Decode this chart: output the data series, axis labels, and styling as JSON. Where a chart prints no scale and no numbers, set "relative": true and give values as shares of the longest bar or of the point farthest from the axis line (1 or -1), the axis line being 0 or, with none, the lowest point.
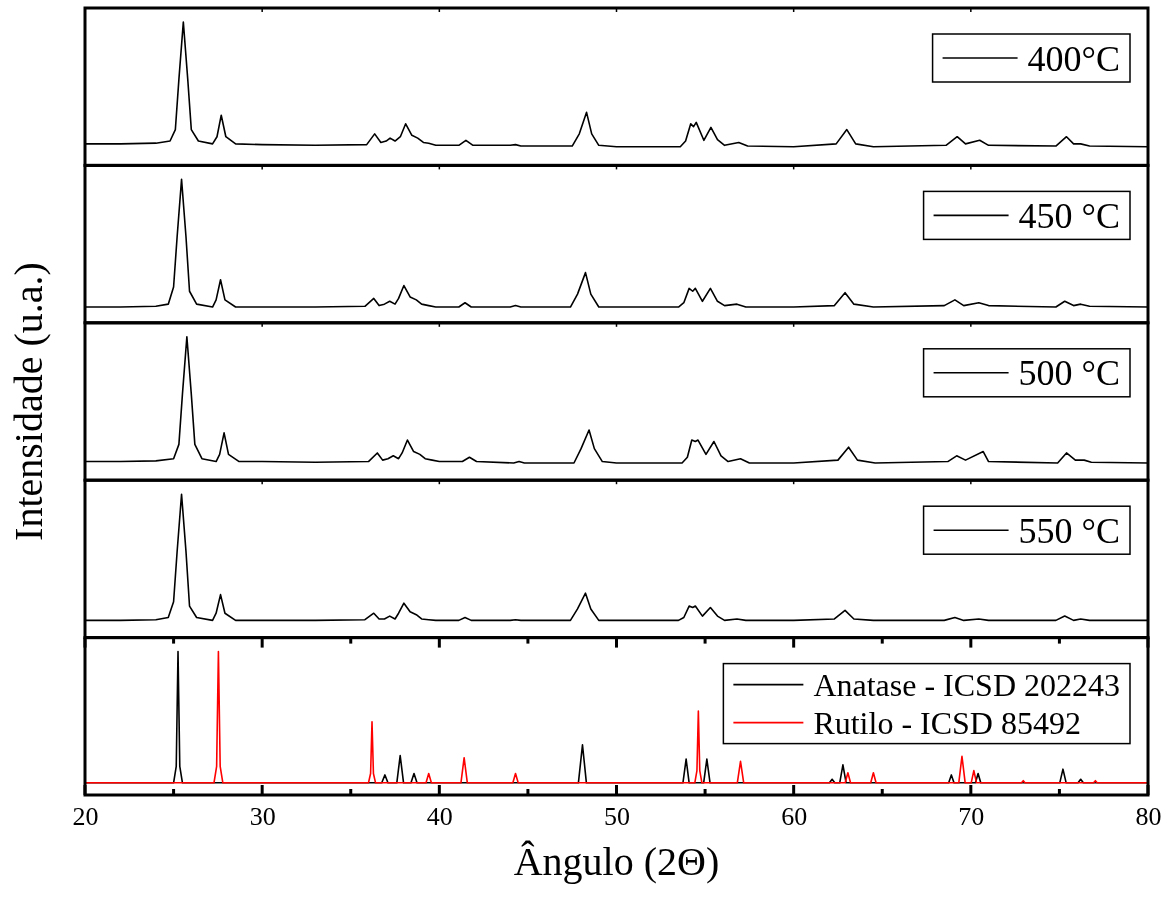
{
  "chart_data": [
    {
      "type": "line",
      "relative": true,
      "xlim": [
        20,
        80
      ],
      "xticks": [
        20,
        30,
        40,
        50,
        60,
        70,
        80
      ],
      "tick_labels": false,
      "legend": "top right",
      "series": [
        {
          "name": "400°C",
          "color": "#000000",
          "x": [
            20,
            22,
            24,
            24.8,
            25.1,
            25.3,
            25.55,
            25.8,
            26.0,
            26.4,
            27.2,
            27.45,
            27.69,
            27.95,
            28.5,
            30,
            33,
            35.9,
            36.35,
            36.7,
            37.0,
            37.22,
            37.5,
            37.8,
            38.1,
            38.45,
            38.78,
            39.1,
            39.4,
            39.8,
            41.1,
            41.5,
            41.9,
            44.0,
            44.3,
            44.6,
            47.5,
            47.9,
            48.31,
            48.6,
            49.0,
            50,
            53.6,
            53.9,
            54.19,
            54.35,
            54.5,
            54.93,
            55.33,
            55.7,
            56.1,
            56.9,
            57.4,
            60,
            62.4,
            63.0,
            63.5,
            64.5,
            68.6,
            69.23,
            69.7,
            70.5,
            71.0,
            74.8,
            75.4,
            75.8,
            76.2,
            76.7,
            80
          ],
          "values": [
            0.15,
            0.15,
            0.155,
            0.17,
            0.25,
            0.6,
            1,
            0.6,
            0.25,
            0.17,
            0.15,
            0.2,
            0.35,
            0.2,
            0.15,
            0.145,
            0.14,
            0.145,
            0.22,
            0.16,
            0.17,
            0.19,
            0.17,
            0.2,
            0.29,
            0.21,
            0.19,
            0.16,
            0.155,
            0.14,
            0.14,
            0.175,
            0.14,
            0.14,
            0.145,
            0.135,
            0.135,
            0.22,
            0.37,
            0.22,
            0.14,
            0.13,
            0.13,
            0.17,
            0.29,
            0.27,
            0.3,
            0.175,
            0.265,
            0.18,
            0.14,
            0.16,
            0.135,
            0.13,
            0.15,
            0.25,
            0.15,
            0.13,
            0.14,
            0.2,
            0.15,
            0.175,
            0.14,
            0.135,
            0.2,
            0.15,
            0.15,
            0.135,
            0.13
          ]
        }
      ]
    },
    {
      "type": "line",
      "relative": true,
      "xlim": [
        20,
        80
      ],
      "xticks": [
        20,
        30,
        40,
        50,
        60,
        70,
        80
      ],
      "tick_labels": false,
      "legend": "top right",
      "series": [
        {
          "name": "450 °C",
          "color": "#000000",
          "x": [
            20,
            22,
            24,
            24.7,
            25.0,
            25.2,
            25.45,
            25.7,
            25.9,
            26.3,
            27.2,
            27.4,
            27.65,
            27.9,
            28.5,
            30,
            33,
            35.8,
            36.3,
            36.6,
            36.9,
            37.2,
            37.5,
            37.7,
            38.0,
            38.35,
            38.7,
            39.0,
            39.4,
            39.8,
            41.1,
            41.45,
            41.8,
            44.0,
            44.3,
            44.6,
            47.4,
            47.8,
            48.25,
            48.55,
            49.0,
            50,
            53.5,
            53.8,
            54.1,
            54.3,
            54.45,
            54.85,
            55.3,
            55.7,
            56.1,
            56.8,
            57.3,
            60,
            62.3,
            62.9,
            63.4,
            64.5,
            68.5,
            69.1,
            69.6,
            70.45,
            71.0,
            74.8,
            75.3,
            75.8,
            76.2,
            76.7,
            80
          ],
          "values": [
            0.11,
            0.11,
            0.115,
            0.13,
            0.25,
            0.6,
            1,
            0.6,
            0.22,
            0.13,
            0.11,
            0.16,
            0.3,
            0.16,
            0.11,
            0.11,
            0.11,
            0.115,
            0.17,
            0.12,
            0.13,
            0.15,
            0.13,
            0.17,
            0.26,
            0.18,
            0.16,
            0.13,
            0.12,
            0.11,
            0.11,
            0.14,
            0.11,
            0.11,
            0.12,
            0.11,
            0.11,
            0.2,
            0.35,
            0.2,
            0.11,
            0.11,
            0.11,
            0.14,
            0.24,
            0.22,
            0.24,
            0.15,
            0.24,
            0.15,
            0.12,
            0.13,
            0.11,
            0.11,
            0.12,
            0.21,
            0.13,
            0.11,
            0.12,
            0.16,
            0.12,
            0.14,
            0.12,
            0.11,
            0.15,
            0.12,
            0.13,
            0.115,
            0.11
          ]
        }
      ]
    },
    {
      "type": "line",
      "relative": true,
      "xlim": [
        20,
        80
      ],
      "xticks": [
        20,
        30,
        40,
        50,
        60,
        70,
        80
      ],
      "tick_labels": false,
      "legend": "top right",
      "ylabel": "Intensidade (u.a.)",
      "series": [
        {
          "name": "500 °C",
          "color": "#000000",
          "x": [
            20,
            22,
            24,
            25.0,
            25.3,
            25.5,
            25.75,
            26.0,
            26.2,
            26.6,
            27.4,
            27.6,
            27.85,
            28.1,
            28.7,
            30,
            33,
            36.0,
            36.5,
            36.8,
            37.1,
            37.4,
            37.7,
            37.9,
            38.2,
            38.55,
            38.9,
            39.2,
            39.6,
            40.0,
            41.3,
            41.7,
            42.1,
            44.2,
            44.5,
            44.8,
            47.6,
            48.0,
            48.45,
            48.75,
            49.2,
            50,
            53.7,
            54.0,
            54.25,
            54.45,
            54.6,
            55.05,
            55.5,
            55.9,
            56.3,
            57.0,
            57.5,
            60,
            62.5,
            63.1,
            63.6,
            64.6,
            68.7,
            69.2,
            69.7,
            70.7,
            71.0,
            74.9,
            75.4,
            75.9,
            76.4,
            76.8,
            80
          ],
          "values": [
            0.13,
            0.13,
            0.135,
            0.15,
            0.25,
            0.6,
            1,
            0.6,
            0.25,
            0.15,
            0.13,
            0.18,
            0.33,
            0.18,
            0.13,
            0.13,
            0.125,
            0.13,
            0.19,
            0.14,
            0.15,
            0.17,
            0.15,
            0.19,
            0.28,
            0.2,
            0.18,
            0.15,
            0.14,
            0.13,
            0.13,
            0.16,
            0.13,
            0.12,
            0.13,
            0.12,
            0.12,
            0.22,
            0.35,
            0.22,
            0.13,
            0.12,
            0.12,
            0.16,
            0.28,
            0.27,
            0.28,
            0.18,
            0.27,
            0.17,
            0.13,
            0.15,
            0.12,
            0.12,
            0.14,
            0.23,
            0.14,
            0.12,
            0.13,
            0.17,
            0.14,
            0.2,
            0.13,
            0.12,
            0.19,
            0.14,
            0.14,
            0.125,
            0.12
          ]
        }
      ]
    },
    {
      "type": "line",
      "relative": true,
      "xlim": [
        20,
        80
      ],
      "xticks": [
        20,
        30,
        40,
        50,
        60,
        70,
        80
      ],
      "tick_labels": false,
      "legend": "top right",
      "series": [
        {
          "name": "550 °C",
          "color": "#000000",
          "x": [
            20,
            22,
            24,
            24.7,
            25.0,
            25.2,
            25.45,
            25.7,
            25.9,
            26.3,
            27.2,
            27.4,
            27.65,
            27.9,
            28.5,
            30,
            33,
            35.8,
            36.3,
            36.6,
            36.9,
            37.2,
            37.5,
            37.7,
            38.0,
            38.35,
            38.7,
            39.0,
            39.4,
            39.8,
            41.1,
            41.45,
            41.8,
            44.0,
            44.3,
            44.6,
            47.4,
            47.8,
            48.25,
            48.55,
            49.0,
            50,
            53.5,
            53.8,
            54.1,
            54.3,
            54.45,
            54.85,
            55.3,
            55.7,
            56.1,
            56.8,
            57.3,
            60,
            62.3,
            62.9,
            63.4,
            64.5,
            68.5,
            69.1,
            69.6,
            70.45,
            71.0,
            74.8,
            75.3,
            75.8,
            76.2,
            76.7,
            80
          ],
          "values": [
            0.12,
            0.12,
            0.125,
            0.14,
            0.25,
            0.6,
            1,
            0.6,
            0.22,
            0.14,
            0.12,
            0.17,
            0.3,
            0.17,
            0.12,
            0.12,
            0.12,
            0.125,
            0.17,
            0.13,
            0.13,
            0.15,
            0.13,
            0.17,
            0.24,
            0.18,
            0.16,
            0.13,
            0.125,
            0.12,
            0.12,
            0.14,
            0.12,
            0.12,
            0.125,
            0.12,
            0.12,
            0.2,
            0.31,
            0.2,
            0.12,
            0.12,
            0.12,
            0.14,
            0.22,
            0.21,
            0.22,
            0.15,
            0.21,
            0.15,
            0.12,
            0.13,
            0.12,
            0.12,
            0.13,
            0.19,
            0.13,
            0.12,
            0.12,
            0.14,
            0.12,
            0.13,
            0.12,
            0.12,
            0.15,
            0.12,
            0.13,
            0.12,
            0.12
          ]
        }
      ]
    },
    {
      "type": "line",
      "relative": true,
      "xlim": [
        20,
        80
      ],
      "xticks": [
        20,
        {
          "value": 25,
          "label": null
        },
        30,
        {
          "value": 35,
          "label": null
        },
        40,
        {
          "value": 45,
          "label": null
        },
        50,
        {
          "value": 55,
          "label": null
        },
        60,
        {
          "value": 65,
          "label": null
        },
        70,
        {
          "value": 75,
          "label": null
        },
        80
      ],
      "tick_labels": "x",
      "legend": "top right",
      "xlabel": "Ângulo (2Θ)",
      "series": [
        {
          "name": "Anatase - ICSD 202243",
          "color": "#000000",
          "x": [
            20,
            25.0,
            25.15,
            25.25,
            25.35,
            25.5,
            36.75,
            36.93,
            37.1,
            37.6,
            37.79,
            37.98,
            38.4,
            38.57,
            38.74,
            47.85,
            48.08,
            48.3,
            53.75,
            53.93,
            54.1,
            54.92,
            55.1,
            55.28,
            62.02,
            62.17,
            62.32,
            62.6,
            62.78,
            62.96,
            68.75,
            68.9,
            69.05,
            70.26,
            70.41,
            70.56,
            75.02,
            75.2,
            75.38,
            76.05,
            76.2,
            76.35,
            80
          ],
          "values": [
            0.085,
            0.085,
            0.2,
            1,
            0.2,
            0.085,
            0.085,
            0.14,
            0.085,
            0.085,
            0.275,
            0.085,
            0.085,
            0.15,
            0.085,
            0.085,
            0.35,
            0.085,
            0.085,
            0.25,
            0.085,
            0.085,
            0.25,
            0.085,
            0.085,
            0.11,
            0.085,
            0.085,
            0.21,
            0.085,
            0.085,
            0.14,
            0.085,
            0.085,
            0.15,
            0.085,
            0.085,
            0.18,
            0.085,
            0.085,
            0.11,
            0.085,
            0.085
          ]
        },
        {
          "name": "Rutilo - ICSD 85492",
          "color": "#ff0000",
          "x": [
            20,
            27.28,
            27.43,
            27.53,
            27.63,
            27.78,
            36.0,
            36.12,
            36.2,
            36.28,
            36.4,
            39.25,
            39.4,
            39.55,
            41.22,
            41.4,
            41.58,
            44.15,
            44.3,
            44.45,
            54.42,
            54.54,
            54.62,
            54.7,
            54.82,
            56.82,
            57.0,
            57.18,
            62.91,
            63.06,
            63.21,
            64.35,
            64.5,
            64.65,
            69.32,
            69.5,
            69.68,
            70.02,
            70.17,
            70.32,
            72.86,
            72.96,
            73.06,
            76.93,
            77.03,
            77.13,
            80
          ],
          "values": [
            0.085,
            0.085,
            0.2,
            1,
            0.2,
            0.085,
            0.085,
            0.15,
            0.51,
            0.15,
            0.085,
            0.085,
            0.15,
            0.085,
            0.085,
            0.26,
            0.085,
            0.085,
            0.15,
            0.085,
            0.085,
            0.17,
            0.585,
            0.17,
            0.085,
            0.085,
            0.235,
            0.085,
            0.085,
            0.155,
            0.085,
            0.085,
            0.155,
            0.085,
            0.085,
            0.27,
            0.085,
            0.085,
            0.17,
            0.085,
            0.085,
            0.1,
            0.085,
            0.085,
            0.1,
            0.085,
            0.085
          ]
        }
      ]
    }
  ]
}
